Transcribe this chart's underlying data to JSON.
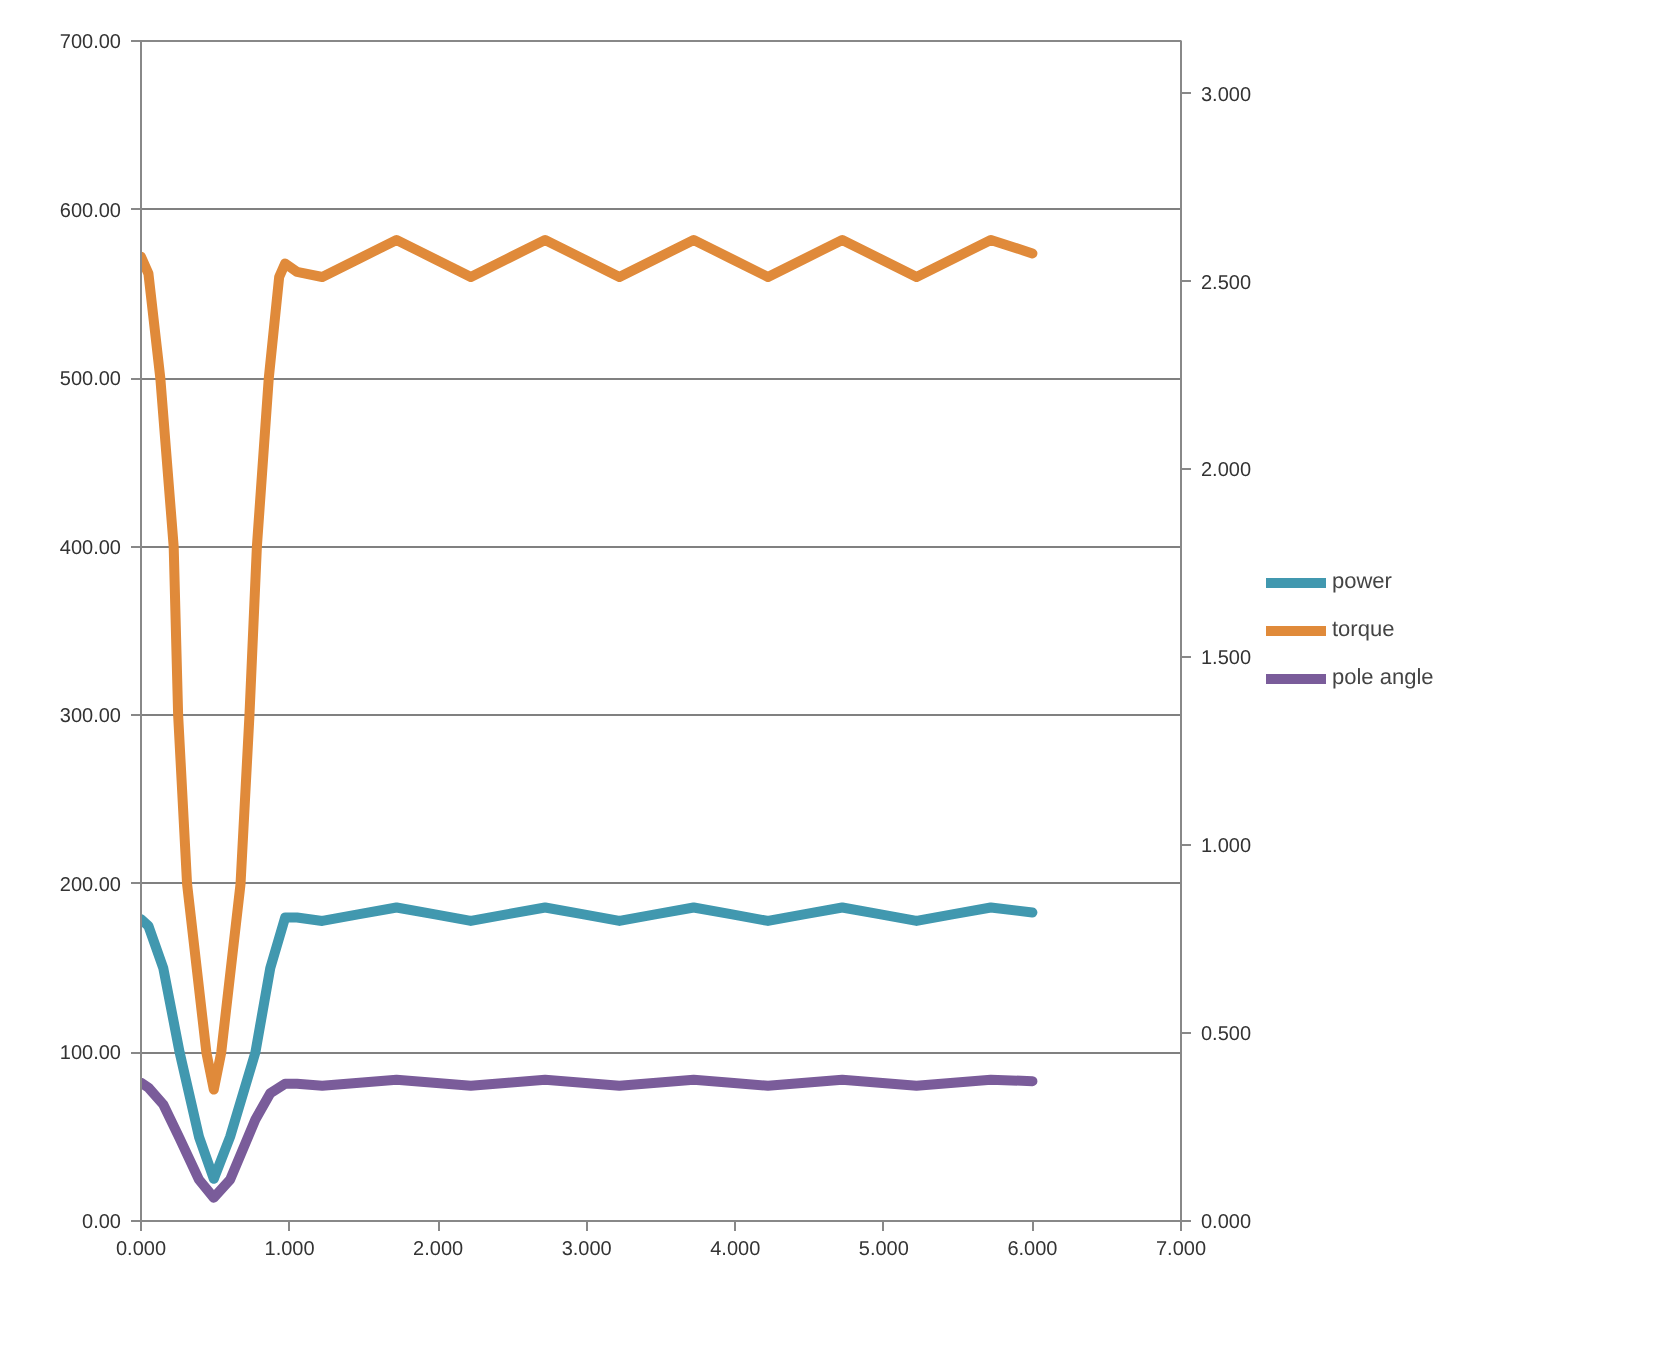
{
  "chart_data": {
    "type": "line",
    "xlim": [
      0,
      7
    ],
    "xticks": [
      {
        "value": 0,
        "label": "0.000"
      },
      {
        "value": 1,
        "label": "1.000"
      },
      {
        "value": 2,
        "label": "2.000"
      },
      {
        "value": 3,
        "label": "3.000"
      },
      {
        "value": 4,
        "label": "4.000"
      },
      {
        "value": 5,
        "label": "5.000"
      },
      {
        "value": 6,
        "label": "6.000"
      },
      {
        "value": 7,
        "label": "7.000"
      }
    ],
    "ylim": [
      0,
      700
    ],
    "yticks": [
      {
        "value": 0,
        "label": "0.00"
      },
      {
        "value": 100,
        "label": "100.00"
      },
      {
        "value": 200,
        "label": "200.00"
      },
      {
        "value": 300,
        "label": "300.00"
      },
      {
        "value": 400,
        "label": "400.00"
      },
      {
        "value": 500,
        "label": "500.00"
      },
      {
        "value": 600,
        "label": "600.00"
      },
      {
        "value": 700,
        "label": "700.00"
      }
    ],
    "y2lim": [
      0,
      3.14
    ],
    "y2ticks": [
      {
        "value": 0,
        "label": "0.000"
      },
      {
        "value": 0.5,
        "label": "0.500"
      },
      {
        "value": 1,
        "label": "1.000"
      },
      {
        "value": 1.5,
        "label": "1.500"
      },
      {
        "value": 2,
        "label": "2.000"
      },
      {
        "value": 2.5,
        "label": "2.500"
      },
      {
        "value": 3,
        "label": "3.000"
      }
    ],
    "grid": "y",
    "legend": "right",
    "marker": "none",
    "line_style": "solid",
    "series": [
      {
        "name": "power",
        "color": "#4198af",
        "x": [
          0,
          0.05,
          0.15,
          0.26,
          0.39,
          0.49,
          0.6,
          0.77,
          0.87,
          0.97,
          1.05,
          1.22,
          1.47,
          1.72,
          1.97,
          2.22,
          2.47,
          2.72,
          2.97,
          3.22,
          3.47,
          3.72,
          3.97,
          4.22,
          4.47,
          4.72,
          4.97,
          5.22,
          5.47,
          5.72,
          6.0
        ],
        "values": [
          179,
          175,
          150,
          100,
          50,
          25,
          50,
          100,
          150,
          180,
          180,
          178,
          182,
          186,
          182,
          178,
          182,
          186,
          182,
          178,
          182,
          186,
          182,
          178,
          182,
          186,
          182,
          178,
          182,
          186,
          183
        ]
      },
      {
        "name": "torque",
        "color": "#e08a3a",
        "x": [
          0,
          0.05,
          0.13,
          0.22,
          0.25,
          0.31,
          0.44,
          0.49,
          0.54,
          0.67,
          0.73,
          0.78,
          0.86,
          0.93,
          0.97,
          1.05,
          1.22,
          1.47,
          1.72,
          1.97,
          2.22,
          2.47,
          2.72,
          2.97,
          3.22,
          3.47,
          3.72,
          3.97,
          4.22,
          4.47,
          4.72,
          4.97,
          5.22,
          5.47,
          5.72,
          6.0
        ],
        "values": [
          572,
          562,
          500,
          400,
          300,
          200,
          100,
          78,
          100,
          200,
          300,
          400,
          500,
          560,
          568,
          563,
          560,
          571,
          582,
          571,
          560,
          571,
          582,
          571,
          560,
          571,
          582,
          571,
          560,
          571,
          582,
          571,
          560,
          571,
          582,
          574
        ]
      },
      {
        "name": "pole angle",
        "color": "#7a5c9a",
        "axis": "y2",
        "x": [
          0,
          0.05,
          0.15,
          0.26,
          0.39,
          0.49,
          0.6,
          0.77,
          0.87,
          0.97,
          1.05,
          1.22,
          1.47,
          1.72,
          1.97,
          2.22,
          2.47,
          2.72,
          2.97,
          3.22,
          3.47,
          3.72,
          3.97,
          4.22,
          4.47,
          4.72,
          4.97,
          5.22,
          5.47,
          5.72,
          6.0
        ],
        "values": [
          0.368,
          0.355,
          0.31,
          0.22,
          0.11,
          0.062,
          0.11,
          0.27,
          0.34,
          0.365,
          0.365,
          0.36,
          0.368,
          0.376,
          0.368,
          0.36,
          0.368,
          0.376,
          0.368,
          0.36,
          0.368,
          0.376,
          0.368,
          0.36,
          0.368,
          0.376,
          0.368,
          0.36,
          0.368,
          0.376,
          0.372
        ]
      }
    ]
  }
}
